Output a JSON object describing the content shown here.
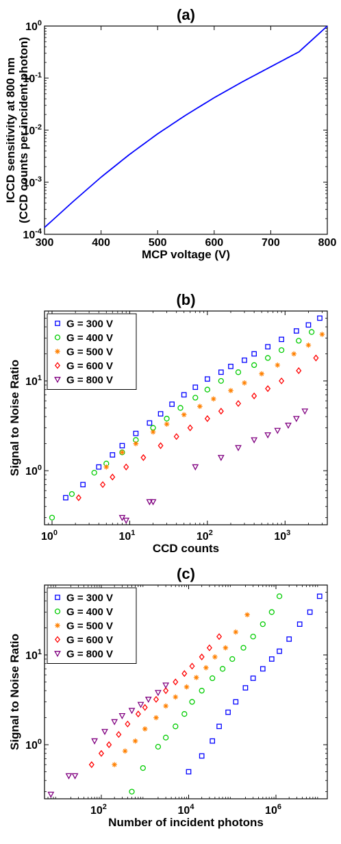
{
  "chart_data": [
    {
      "panel": "(a)",
      "type": "line",
      "title": "(a)",
      "xlabel": "MCP voltage (V)",
      "ylabel": [
        "ICCD sensitivity at 800 nm",
        "(CCD counts per incident photon)"
      ],
      "xscale": "linear",
      "yscale": "log",
      "xlim": [
        300,
        800
      ],
      "ylim": [
        0.0001,
        1
      ],
      "xticks": [
        "300",
        "400",
        "500",
        "600",
        "700",
        "800"
      ],
      "yticks": [
        {
          "base": "10",
          "exp": "-4"
        },
        {
          "base": "10",
          "exp": "-3"
        },
        {
          "base": "10",
          "exp": "-2"
        },
        {
          "base": "10",
          "exp": "-1"
        },
        {
          "base": "10",
          "exp": "0"
        }
      ],
      "grid": false,
      "series": [
        {
          "color": "#0000ff",
          "x": [
            300,
            350,
            400,
            450,
            500,
            550,
            600,
            650,
            700,
            750,
            800
          ],
          "y": [
            0.000135,
            0.00042,
            0.00125,
            0.0034,
            0.0085,
            0.0195,
            0.042,
            0.085,
            0.165,
            0.32,
            1.0
          ]
        }
      ]
    },
    {
      "panel": "(b)",
      "type": "scatter",
      "title": "(b)",
      "xlabel": "CCD counts",
      "ylabel": "Signal to Noise Ratio",
      "xscale": "log",
      "yscale": "log",
      "xlim": [
        0.8,
        3500
      ],
      "ylim": [
        0.25,
        60
      ],
      "xticks": [
        {
          "base": "10",
          "exp": "0"
        },
        {
          "base": "10",
          "exp": "1"
        },
        {
          "base": "10",
          "exp": "2"
        },
        {
          "base": "10",
          "exp": "3"
        }
      ],
      "yticks": [
        {
          "base": "10",
          "exp": "0"
        },
        {
          "base": "10",
          "exp": "1"
        }
      ],
      "grid": false,
      "legend": "top-left",
      "series": [
        {
          "name": "G = 300 V",
          "color": "#0000ff",
          "marker": "square",
          "x": [
            1.5,
            2.5,
            4,
            6,
            8,
            12,
            18,
            25,
            35,
            50,
            70,
            100,
            150,
            200,
            300,
            400,
            600,
            900,
            1400,
            2000,
            2800
          ],
          "y": [
            0.5,
            0.7,
            1.1,
            1.5,
            1.9,
            2.6,
            3.4,
            4.3,
            5.5,
            7,
            8.5,
            10.5,
            12.5,
            14.5,
            17,
            20,
            24,
            29,
            36,
            42,
            50
          ]
        },
        {
          "name": "G = 400 V",
          "color": "#00cc00",
          "marker": "circle",
          "x": [
            1,
            1.8,
            3.5,
            5,
            8,
            12,
            20,
            30,
            45,
            70,
            100,
            150,
            250,
            400,
            600,
            900,
            1500,
            2200
          ],
          "y": [
            0.3,
            0.55,
            0.95,
            1.2,
            1.6,
            2.2,
            3,
            3.8,
            5,
            6.5,
            8,
            10,
            12.5,
            15,
            18,
            22,
            28,
            35
          ]
        },
        {
          "name": "G = 500 V",
          "color": "#ff8000",
          "marker": "asterisk",
          "x": [
            5,
            8,
            12,
            20,
            30,
            50,
            80,
            120,
            200,
            300,
            500,
            800,
            1300,
            2000,
            3000
          ],
          "y": [
            1.1,
            1.6,
            2,
            2.7,
            3.3,
            4.2,
            5.2,
            6.3,
            7.8,
            9.5,
            12,
            15,
            20,
            25,
            33
          ]
        },
        {
          "name": "G = 600 V",
          "color": "#ff0000",
          "marker": "diamond",
          "x": [
            2.2,
            4.5,
            6,
            9,
            15,
            25,
            40,
            60,
            100,
            150,
            250,
            400,
            600,
            900,
            1500,
            2500
          ],
          "y": [
            0.5,
            0.7,
            0.85,
            1.1,
            1.4,
            1.9,
            2.4,
            3,
            3.8,
            4.6,
            5.6,
            6.8,
            8.2,
            10,
            13,
            18
          ]
        },
        {
          "name": "G = 800 V",
          "color": "#800080",
          "marker": "triangle-down",
          "x": [
            8,
            9,
            18,
            20,
            70,
            150,
            250,
            400,
            600,
            800,
            1100,
            1400,
            1800
          ],
          "y": [
            0.3,
            0.28,
            0.45,
            0.45,
            1.1,
            1.4,
            1.8,
            2.2,
            2.5,
            2.8,
            3.2,
            3.8,
            4.6
          ]
        }
      ]
    },
    {
      "panel": "(c)",
      "type": "scatter",
      "title": "(c)",
      "xlabel": "Number of incident photons",
      "ylabel": "Signal to Noise Ratio",
      "xscale": "log",
      "yscale": "log",
      "xlim": [
        5,
        15000000
      ],
      "ylim": [
        0.25,
        60
      ],
      "xticks": [
        {
          "base": "10",
          "exp": "2"
        },
        {
          "base": "10",
          "exp": "4"
        },
        {
          "base": "10",
          "exp": "6"
        }
      ],
      "yticks": [
        {
          "base": "10",
          "exp": "0"
        },
        {
          "base": "10",
          "exp": "1"
        }
      ],
      "grid": false,
      "legend": "top-left",
      "series": [
        {
          "name": "G = 300 V",
          "color": "#0000ff",
          "marker": "square",
          "x": [
            10000,
            20000,
            35000,
            50000,
            80000,
            120000,
            200000,
            300000,
            500000,
            800000,
            1200000,
            2000000,
            3500000,
            6000000,
            10000000
          ],
          "y": [
            0.5,
            0.75,
            1.1,
            1.6,
            2.3,
            3,
            4.3,
            5.5,
            7,
            9,
            11,
            15,
            22,
            30,
            45
          ]
        },
        {
          "name": "G = 400 V",
          "color": "#00cc00",
          "marker": "circle",
          "x": [
            500,
            900,
            2000,
            3000,
            5000,
            8000,
            12000,
            20000,
            35000,
            60000,
            100000,
            180000,
            300000,
            500000,
            800000,
            1200000
          ],
          "y": [
            0.3,
            0.55,
            0.95,
            1.2,
            1.6,
            2.2,
            3,
            4,
            5.5,
            7,
            9,
            12,
            16,
            22,
            30,
            45
          ]
        },
        {
          "name": "G = 500 V",
          "color": "#ff8000",
          "marker": "asterisk",
          "x": [
            200,
            350,
            600,
            1000,
            1800,
            3000,
            5000,
            9000,
            15000,
            25000,
            40000,
            70000,
            120000,
            220000
          ],
          "y": [
            0.6,
            0.85,
            1.1,
            1.5,
            2,
            2.7,
            3.4,
            4.4,
            5.6,
            7.2,
            9.5,
            12,
            18,
            28
          ]
        },
        {
          "name": "G = 600 V",
          "color": "#ff0000",
          "marker": "diamond",
          "x": [
            60,
            100,
            150,
            250,
            400,
            700,
            1000,
            1800,
            3000,
            5000,
            8000,
            12000,
            20000,
            30000,
            50000
          ],
          "y": [
            0.6,
            0.8,
            1,
            1.3,
            1.7,
            2.2,
            2.6,
            3.2,
            4,
            5,
            6.2,
            7.5,
            9.5,
            12,
            16
          ]
        },
        {
          "name": "G = 800 V",
          "color": "#800080",
          "marker": "triangle-down",
          "x": [
            7,
            18,
            25,
            70,
            120,
            200,
            300,
            500,
            800,
            1200,
            2000,
            3000
          ],
          "y": [
            0.28,
            0.45,
            0.45,
            1.1,
            1.4,
            1.8,
            2.1,
            2.4,
            2.8,
            3.2,
            3.8,
            4.6
          ]
        }
      ]
    }
  ]
}
